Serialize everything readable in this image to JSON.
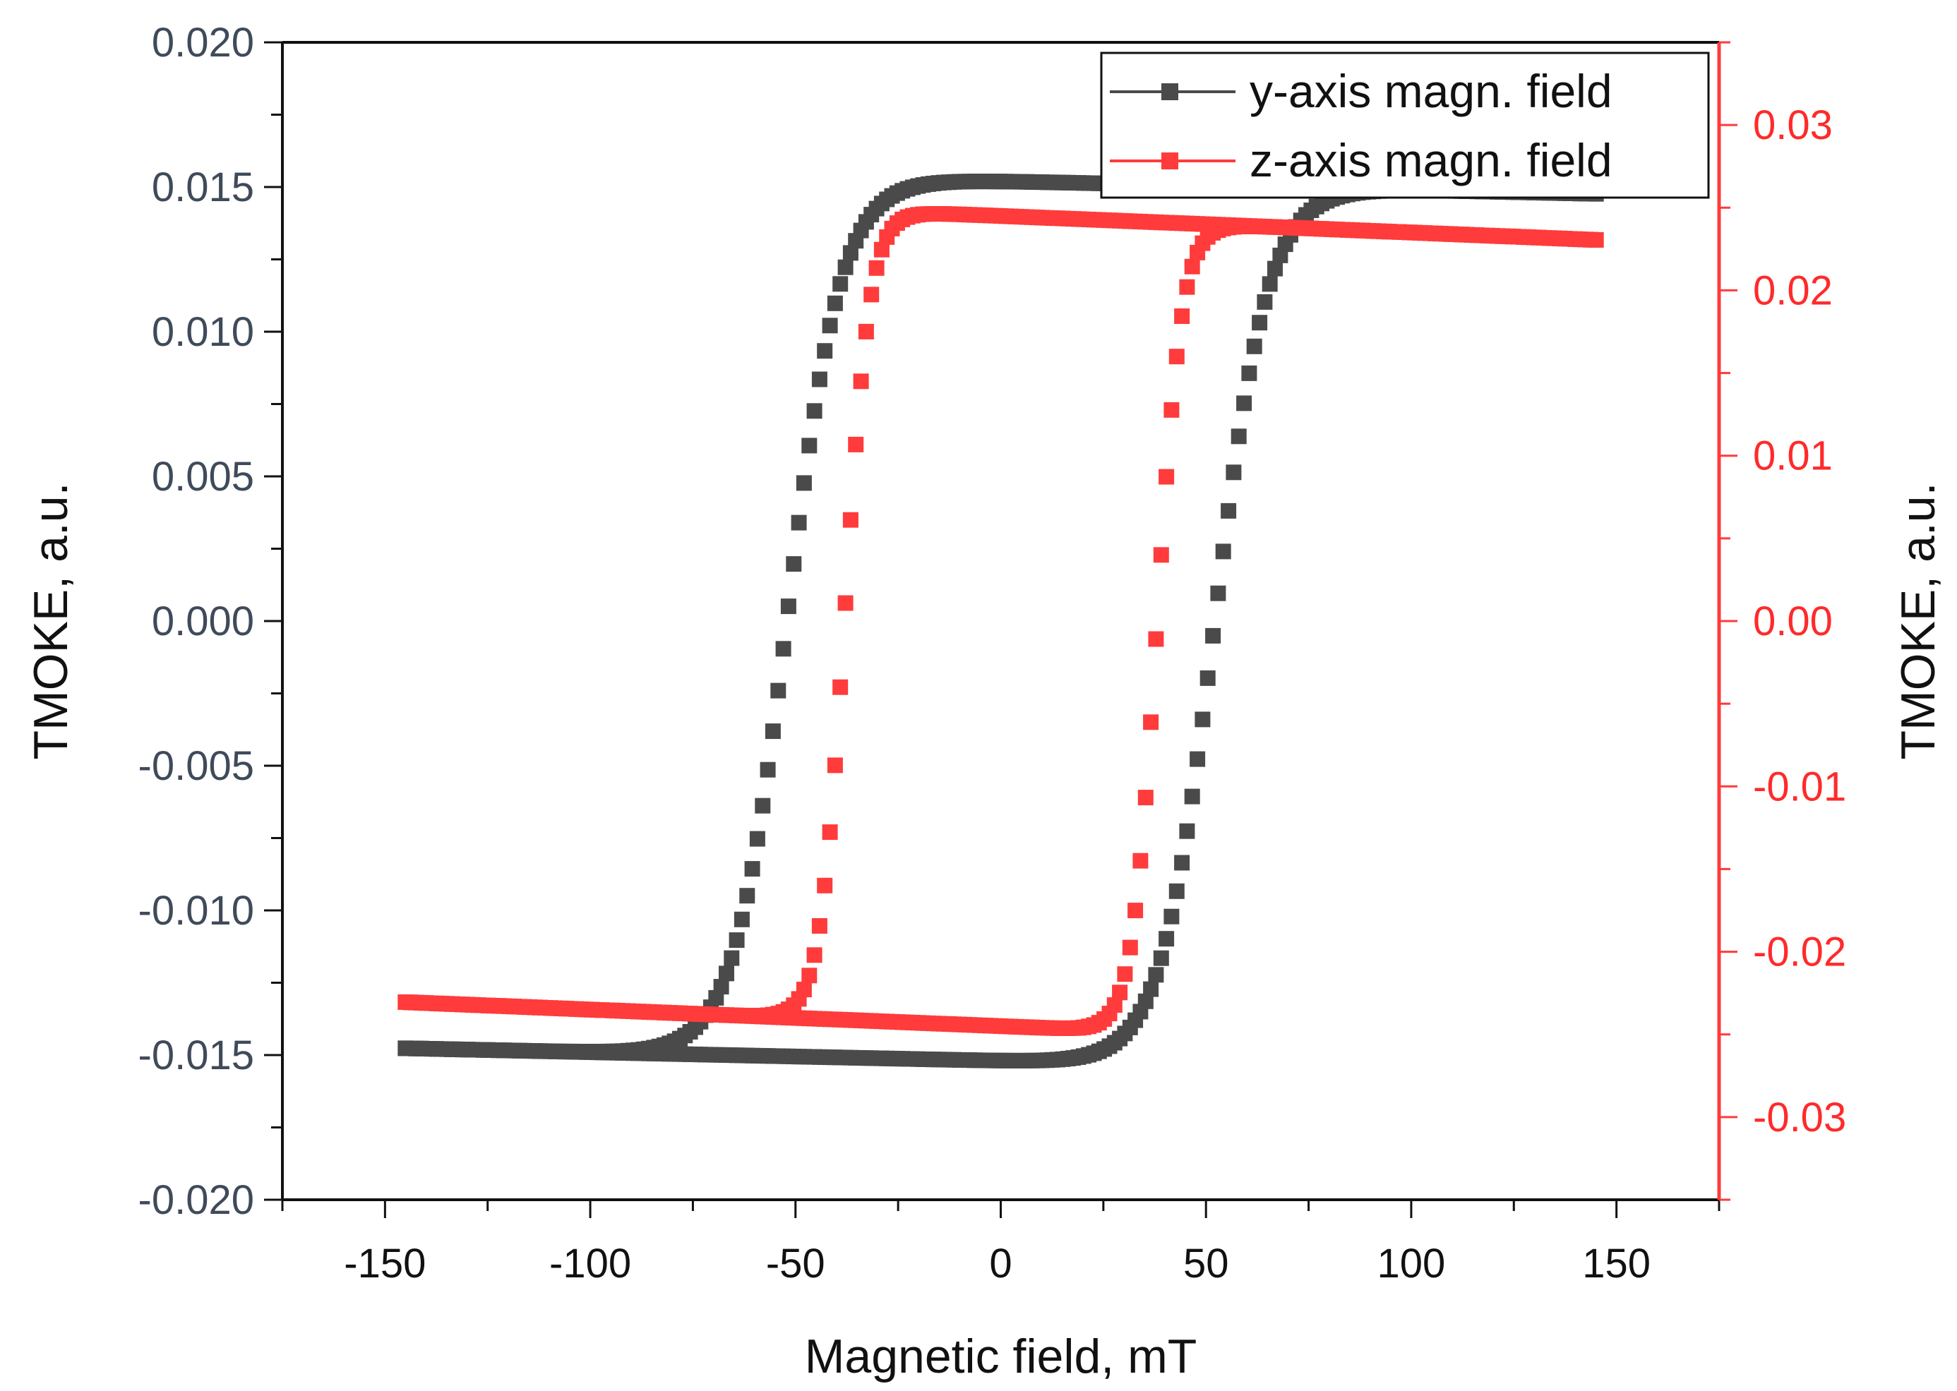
{
  "chart_data": {
    "type": "scatter",
    "title": "",
    "xlabel": "Magnetic field, mT",
    "ylabel": "TMOKE, a.u.",
    "ylabel_right": "TMOKE, a.u.",
    "xlim": [
      -175,
      175
    ],
    "ylim": [
      -0.02,
      0.02
    ],
    "ylim_right": [
      -0.035,
      0.035
    ],
    "x_ticks": [
      "-150",
      "-100",
      "-50",
      "0",
      "50",
      "100",
      "150"
    ],
    "y_ticks": [
      "0.020",
      "0.015",
      "0.010",
      "0.005",
      "0.000",
      "-0.005",
      "-0.010",
      "-0.015",
      "-0.020"
    ],
    "y_ticks_right": [
      "0.03",
      "0.02",
      "0.01",
      "0.00",
      "-0.01",
      "-0.02",
      "-0.03"
    ],
    "legend_position": "top-right",
    "grid": false,
    "series": [
      {
        "name": "y-axis magn. field",
        "axis": "left",
        "color": "#4a4a4a",
        "marker": "square",
        "params": {
          "Hc": 52,
          "width": 13,
          "Ms": 0.0152,
          "slope": -3e-06
        }
      },
      {
        "name": "z-axis magn. field",
        "axis": "right",
        "color": "#ff3b3b",
        "marker": "square",
        "params": {
          "Hc": 38,
          "width": 6,
          "Ms": 0.0245,
          "slope": -1e-05
        }
      }
    ]
  },
  "legend": {
    "entries": [
      "y-axis magn. field",
      "z-axis magn. field"
    ]
  }
}
